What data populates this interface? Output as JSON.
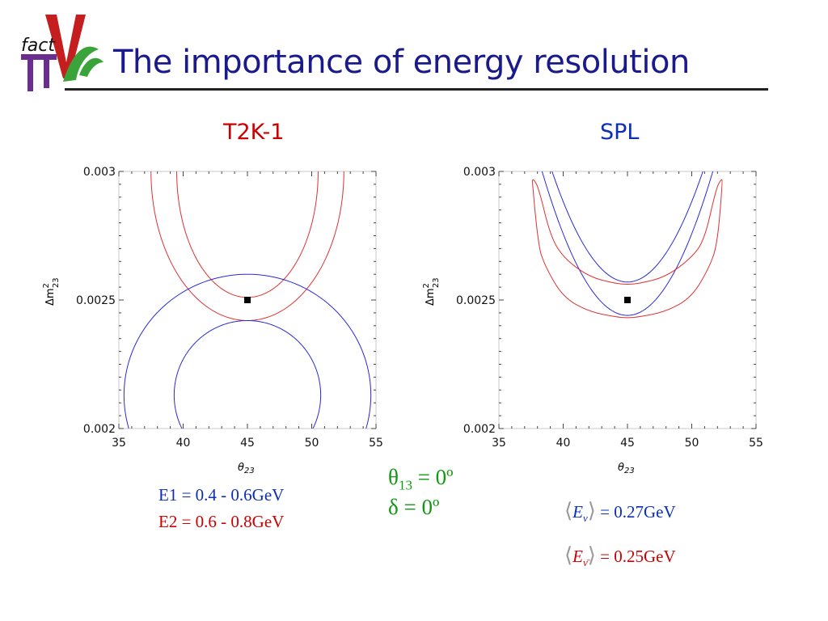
{
  "slide": {
    "title": "The importance of energy resolution",
    "logo_text": "fact"
  },
  "left_panel": {
    "subtitle": "T2K-1",
    "notes": [
      "E1 = 0.4 - 0.6GeV",
      "E2 = 0.6 - 0.8GeV"
    ]
  },
  "right_panel": {
    "subtitle": "SPL",
    "mean_energy_nu": {
      "label": "E",
      "sub": "ν",
      "value": "= 0.27GeV"
    },
    "mean_energy_nubar": {
      "label": "E",
      "sub": "ν̄",
      "value": "= 0.25GeV"
    }
  },
  "center_notes": {
    "theta13_symbol": "θ",
    "theta13_sub": "13",
    "theta13_value": " = 0º",
    "delta": "δ = 0º"
  },
  "chart_data": [
    {
      "type": "line",
      "title": "T2K-1",
      "xlabel": "θ23",
      "ylabel": "Δm²23",
      "xlim": [
        35,
        55
      ],
      "ylim": [
        0.002,
        0.003
      ],
      "xticks": [
        "35",
        "40",
        "45",
        "50",
        "55"
      ],
      "yticks": [
        "0.002",
        "0.0025",
        "0.003"
      ],
      "true_point": {
        "x": 45,
        "y": 0.0025
      },
      "series": [
        {
          "color": "#e03030",
          "kind": "ellipse",
          "cx": 45,
          "cy": 0.003,
          "rx": 7.5,
          "ry": 0.00058
        },
        {
          "color": "#e03030",
          "kind": "ellipse",
          "cx": 45,
          "cy": 0.003,
          "rx": 5.5,
          "ry": 0.00049
        },
        {
          "color": "#2a2ad8",
          "kind": "ellipse",
          "cx": 45,
          "cy": 0.00213,
          "rx": 9.6,
          "ry": 0.00047
        },
        {
          "color": "#2a2ad8",
          "kind": "ellipse",
          "cx": 45,
          "cy": 0.00213,
          "rx": 5.7,
          "ry": 0.00029
        }
      ]
    },
    {
      "type": "line",
      "title": "SPL",
      "xlabel": "θ23",
      "ylabel": "Δm²23",
      "xlim": [
        35,
        55
      ],
      "ylim": [
        0.002,
        0.003
      ],
      "xticks": [
        "35",
        "40",
        "45",
        "50",
        "55"
      ],
      "yticks": [
        "0.002",
        "0.0025",
        "0.003"
      ],
      "true_point": {
        "x": 45,
        "y": 0.0025
      },
      "series": [
        {
          "color": "#2a2ad8",
          "kind": "parabola",
          "vx": 45,
          "vy": 0.00244,
          "a": 1.27e-05
        },
        {
          "color": "#2a2ad8",
          "kind": "parabola",
          "vx": 45,
          "vy": 0.00257,
          "a": 1.25e-05
        },
        {
          "color": "#e03030",
          "kind": "points",
          "x": [
            37.6,
            38.0,
            38.6,
            40.0,
            42.0,
            44.0,
            45.0,
            46.0,
            48.0,
            50.0,
            51.4,
            52.0,
            52.4,
            52.3,
            51.9,
            51.0,
            50.0,
            48.0,
            46.0,
            45.0,
            44.0,
            42.0,
            40.0,
            39.0,
            38.1,
            37.7,
            37.6
          ],
          "y": [
            0.002965,
            0.00272,
            0.00263,
            0.00251,
            0.002455,
            0.002435,
            0.00243,
            0.002435,
            0.002455,
            0.00251,
            0.00263,
            0.00272,
            0.002965,
            0.00297,
            0.002935,
            0.002735,
            0.002665,
            0.00259,
            0.002565,
            0.00256,
            0.002565,
            0.00259,
            0.002665,
            0.00275,
            0.002935,
            0.00297,
            0.002965
          ]
        }
      ]
    }
  ]
}
